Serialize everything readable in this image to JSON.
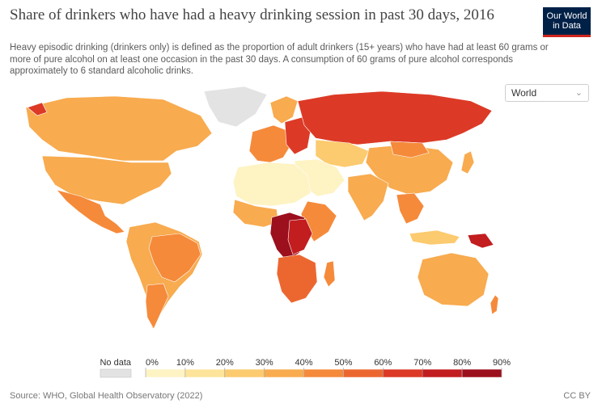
{
  "header": {
    "title": "Share of drinkers who have had a heavy drinking session in past 30 days, 2016",
    "subtitle": "Heavy episodic drinking (drinkers only) is defined as the proportion of adult drinkers (15+ years) who have had at least 60 grams or more of pure alcohol on at least one occasion in the past 30 days. A consumption of 60 grams of pure alcohol corresponds approximately to 6 standard alcoholic drinks.",
    "logo_line1": "Our World",
    "logo_line2": "in Data"
  },
  "controls": {
    "region_select": "World"
  },
  "legend": {
    "no_data_label": "No data",
    "no_data_color": "#e3e3e3",
    "ticks": [
      "0%",
      "10%",
      "20%",
      "30%",
      "40%",
      "50%",
      "60%",
      "70%",
      "80%",
      "90%"
    ],
    "colors": [
      "#fef3c3",
      "#fde49a",
      "#fcca6f",
      "#f8ab4f",
      "#f58a3b",
      "#ec6730",
      "#dc3a26",
      "#c21d1f",
      "#9c0f1d"
    ]
  },
  "footer": {
    "source": "Source: WHO, Global Health Observatory (2022)",
    "license": "CC BY"
  }
}
